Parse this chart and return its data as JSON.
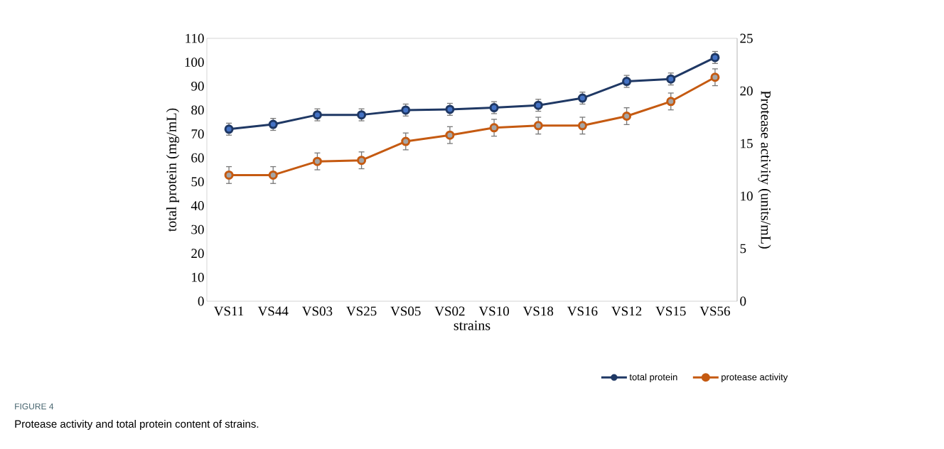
{
  "chart_data": {
    "type": "line",
    "xlabel": "strains",
    "ylabel": "total protein (mg/mL)",
    "y2label": "Protease activity (units/mL)",
    "categories": [
      "VS11",
      "VS44",
      "VS03",
      "VS25",
      "VS05",
      "VS02",
      "VS10",
      "VS18",
      "VS16",
      "VS12",
      "VS15",
      "VS56"
    ],
    "series": [
      {
        "name": "total protein",
        "color": "#1f3864",
        "colors": [
          "#4472c4",
          "#4472c4",
          "#4472c4",
          "#4472c4",
          "#4472c4",
          "#4472c4",
          "#4472c4",
          "#4472c4",
          "#4472c4",
          "#4472c4",
          "#4472c4",
          "#4472c4"
        ],
        "values": [
          72,
          74,
          78,
          78,
          80,
          80.3,
          81,
          82,
          85,
          92,
          93,
          102
        ],
        "errors": [
          2.5,
          2.5,
          2.5,
          2.5,
          2.5,
          2.5,
          2.5,
          2.5,
          2.5,
          2.5,
          2.5,
          2.5
        ]
      },
      {
        "name": "protease activity",
        "color": "#c55a11",
        "axis": "y2",
        "colors": [
          "#a5a5a5",
          "#a5a5a5",
          "#a5a5a5",
          "#a5a5a5",
          "#a5a5a5",
          "#a5a5a5",
          "#a5a5a5",
          "#a5a5a5",
          "#a5a5a5",
          "#a5a5a5",
          "#a5a5a5",
          "#a5a5a5"
        ],
        "values": [
          12,
          12,
          13.3,
          13.4,
          15.2,
          15.8,
          16.5,
          16.7,
          16.7,
          17.6,
          19.0,
          21.3
        ],
        "errors": [
          0.8,
          0.8,
          0.8,
          0.8,
          0.8,
          0.8,
          0.8,
          0.8,
          0.8,
          0.8,
          0.8,
          0.8
        ]
      }
    ],
    "ylim": [
      0,
      110
    ],
    "yticks": [
      0,
      10,
      20,
      30,
      40,
      50,
      60,
      70,
      80,
      90,
      100,
      110
    ],
    "y2lim": [
      0,
      25
    ],
    "y2ticks": [
      0,
      5,
      10,
      15,
      20,
      25
    ],
    "grid": false,
    "legend": "bottom right",
    "marker": "circle",
    "line_style": "solid",
    "annotations": [
      "FIGURE 4",
      "Protease activity and total protein content of strains."
    ]
  }
}
